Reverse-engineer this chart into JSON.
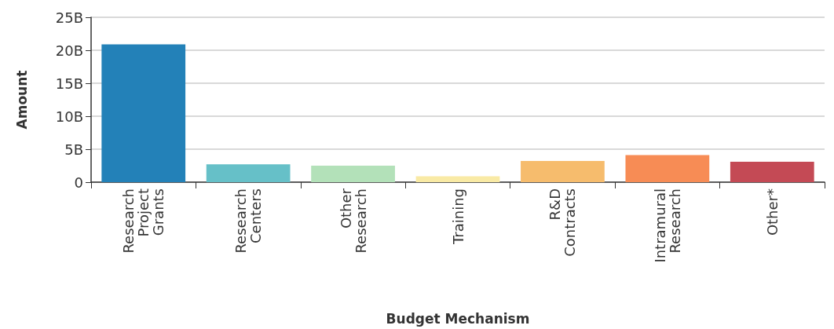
{
  "chart_data": {
    "type": "bar",
    "xlabel": "Budget Mechanism",
    "ylabel": "Amount",
    "categories": [
      "Research Project Grants",
      "Research Centers",
      "Other Research",
      "Training",
      "R&D Contracts",
      "Intramural Research",
      "Other*"
    ],
    "values": [
      20.9,
      2.7,
      2.5,
      0.9,
      3.2,
      4.1,
      3.1
    ],
    "colors": [
      "#2381b8",
      "#66c0c8",
      "#b3e1b9",
      "#f9eaa5",
      "#f6bc6d",
      "#f78c55",
      "#c44a55"
    ],
    "ylim": [
      0,
      25
    ],
    "yticks": [
      0,
      {
        "value": 5,
        "label": "5B"
      },
      {
        "value": 10,
        "label": "10B"
      },
      {
        "value": 15,
        "label": "15B"
      },
      {
        "value": 20,
        "label": "20B"
      },
      {
        "value": 25,
        "label": "25B"
      }
    ],
    "grid": "y"
  }
}
